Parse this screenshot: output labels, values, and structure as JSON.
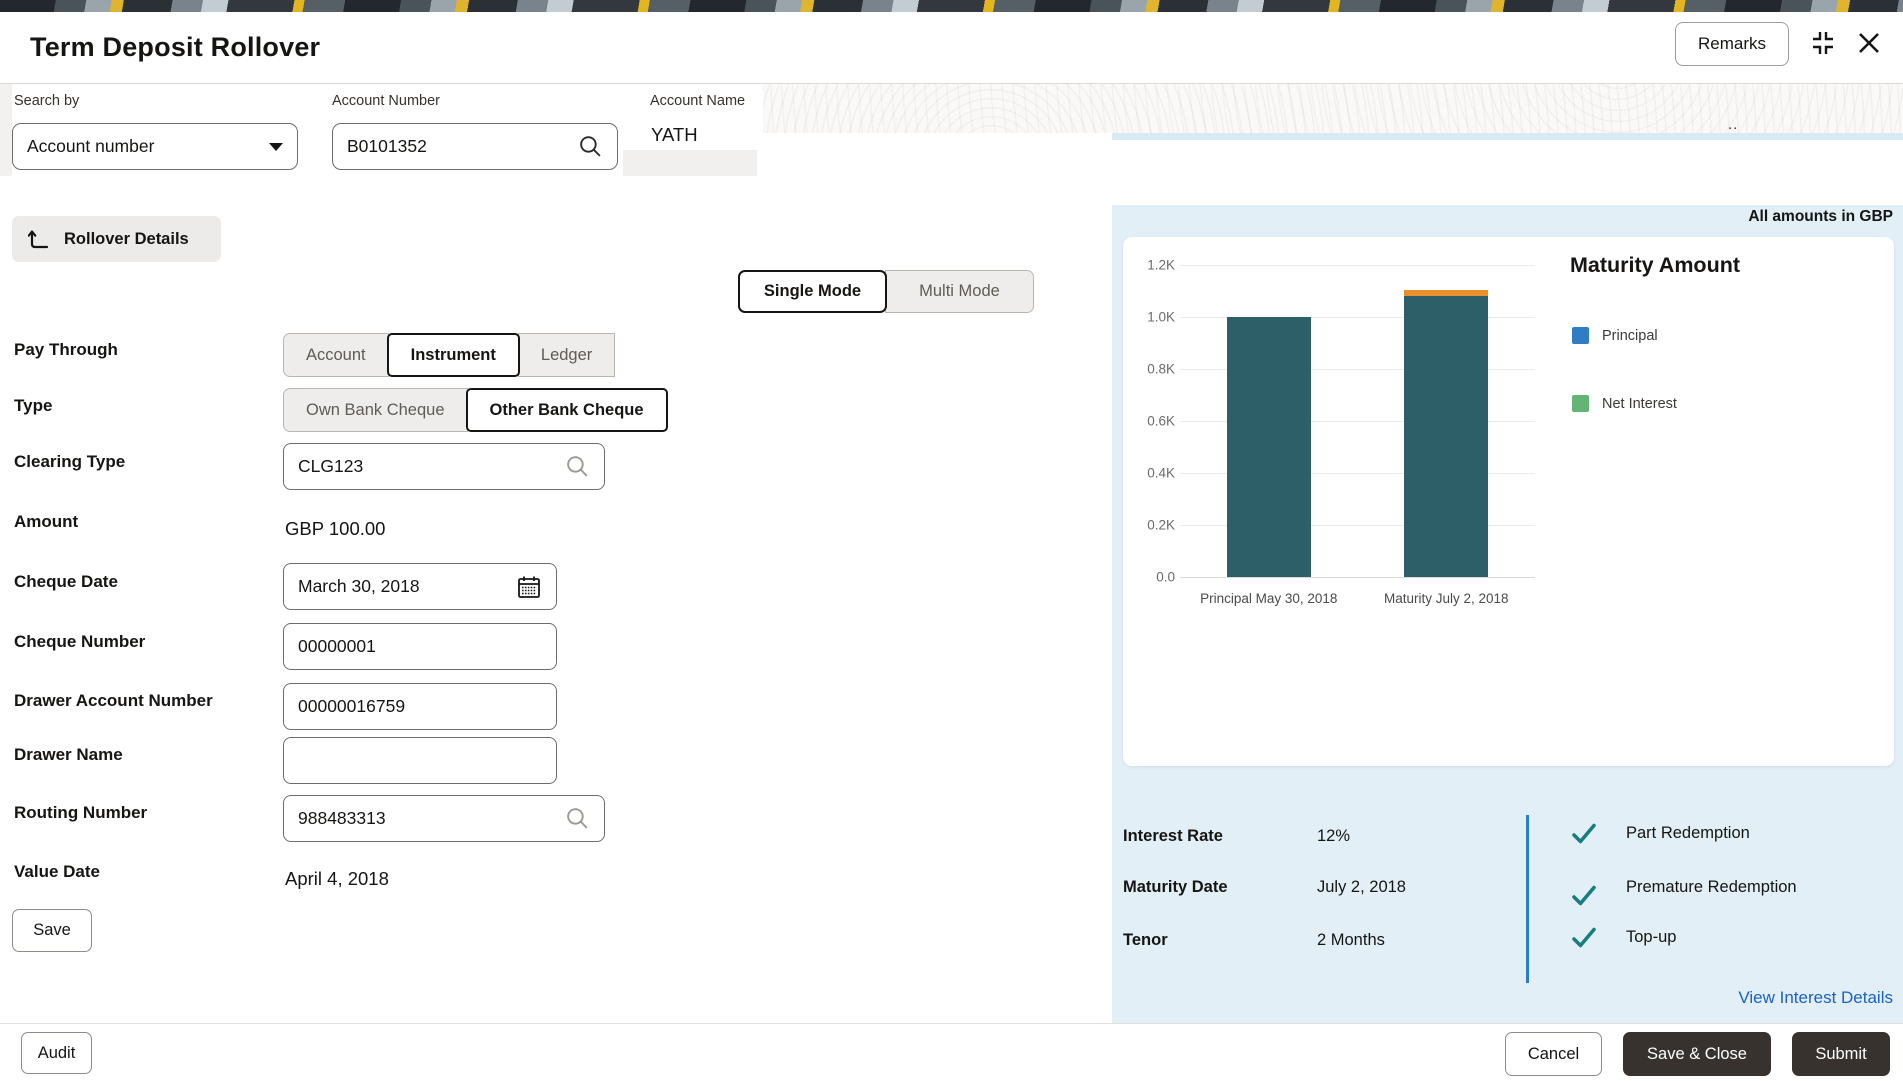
{
  "window": {
    "title": "Term Deposit Rollover",
    "remarks_label": "Remarks",
    "truncated_dots": ".."
  },
  "search": {
    "search_by_label": "Search by",
    "search_by_value": "Account number",
    "account_number_label": "Account Number",
    "account_number_value": "B0101352",
    "account_name_label": "Account Name",
    "account_name_value": "YATH"
  },
  "rollover_details_label": "Rollover Details",
  "mode_toggle": {
    "single_label": "Single Mode",
    "multi_label": "Multi Mode",
    "selected": "Single Mode"
  },
  "form": {
    "pay_through": {
      "label": "Pay Through",
      "options": [
        "Account",
        "Instrument",
        "Ledger"
      ],
      "selected": "Instrument"
    },
    "type": {
      "label": "Type",
      "options": [
        "Own Bank Cheque",
        "Other Bank Cheque"
      ],
      "selected": "Other Bank Cheque"
    },
    "clearing_type": {
      "label": "Clearing Type",
      "value": "CLG123"
    },
    "amount": {
      "label": "Amount",
      "value": "GBP 100.00"
    },
    "cheque_date": {
      "label": "Cheque Date",
      "value": "March 30, 2018"
    },
    "cheque_number": {
      "label": "Cheque Number",
      "value": "00000001"
    },
    "drawer_account_number": {
      "label": "Drawer Account Number",
      "value": "00000016759"
    },
    "drawer_name": {
      "label": "Drawer Name",
      "value": ""
    },
    "routing_number": {
      "label": "Routing Number",
      "value": "988483313"
    },
    "value_date": {
      "label": "Value Date",
      "value": "April 4, 2018"
    },
    "save_label": "Save"
  },
  "summary_panel": {
    "header_note": "All amounts in GBP",
    "details": [
      {
        "label": "Interest Rate",
        "value": "12%"
      },
      {
        "label": "Maturity Date",
        "value": "July 2, 2018"
      },
      {
        "label": "Tenor",
        "value": "2 Months"
      }
    ],
    "features": [
      "Part Redemption",
      "Premature Redemption",
      "Top-up"
    ],
    "link_label": "View Interest Details",
    "divider_color": "#2780c8",
    "check_color": "#177d81"
  },
  "chart_data": {
    "type": "bar",
    "title": "Maturity Amount",
    "unit": "GBP",
    "categories": [
      "Principal May 30, 2018",
      "Maturity July 2, 2018"
    ],
    "series": [
      {
        "name": "Principal",
        "color": "#2c5f68",
        "values": [
          1000,
          1080
        ]
      },
      {
        "name": "Net Interest",
        "color": "#e88f2e",
        "values": [
          0,
          22
        ]
      }
    ],
    "legend": [
      {
        "label": "Principal",
        "color": "#2f7dc4"
      },
      {
        "label": "Net Interest",
        "color": "#64b474"
      }
    ],
    "ylim": [
      0,
      1200
    ],
    "yticks": [
      "1.2K",
      "1.0K",
      "0.8K",
      "0.6K",
      "0.4K",
      "0.2K",
      "0.0"
    ],
    "ytick_values": [
      1200,
      1000,
      800,
      600,
      400,
      200,
      0
    ],
    "grid": true,
    "legend_position": "right"
  },
  "footer": {
    "audit_label": "Audit",
    "cancel_label": "Cancel",
    "save_close_label": "Save & Close",
    "submit_label": "Submit"
  }
}
